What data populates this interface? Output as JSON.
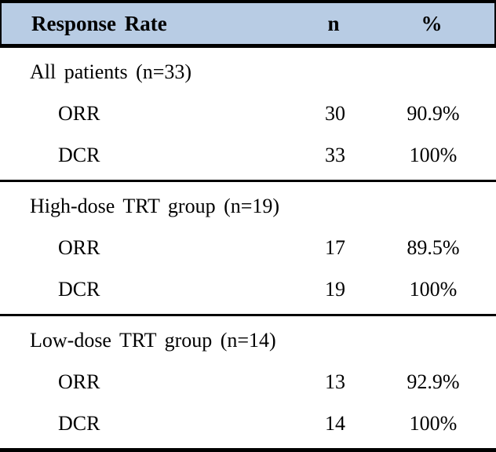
{
  "colors": {
    "header_bg": "#b8cce4",
    "rule": "#000000",
    "text": "#000000"
  },
  "chart_data": {
    "type": "table",
    "title": "Response Rate",
    "columns": [
      "Response Rate",
      "n",
      "%"
    ],
    "sections": [
      {
        "title": "All patients (n=33)",
        "rows": [
          [
            "ORR",
            30,
            "90.9%"
          ],
          [
            "DCR",
            33,
            "100%"
          ]
        ]
      },
      {
        "title": "High-dose TRT group (n=19)",
        "rows": [
          [
            "ORR",
            17,
            "89.5%"
          ],
          [
            "DCR",
            19,
            "100%"
          ]
        ]
      },
      {
        "title": "Low-dose TRT group (n=14)",
        "rows": [
          [
            "ORR",
            13,
            "92.9%"
          ],
          [
            "DCR",
            14,
            "100%"
          ]
        ]
      }
    ]
  }
}
